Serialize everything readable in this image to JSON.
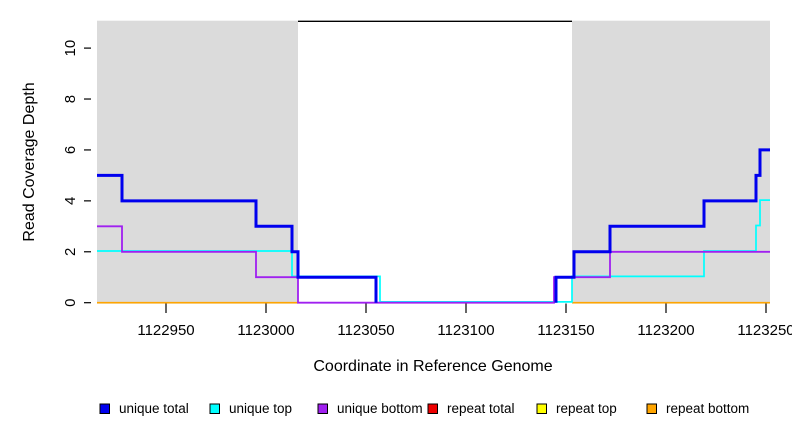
{
  "chart_data": {
    "type": "line",
    "subtype": "step-coverage",
    "title": "",
    "xlabel": "Coordinate in Reference Genome",
    "ylabel": "Read Coverage Depth",
    "x_ticks": [
      1122950,
      1123000,
      1123050,
      1123100,
      1123150,
      1123200,
      1123250
    ],
    "y_ticks": [
      0,
      2,
      4,
      6,
      8,
      10
    ],
    "xlim": [
      1122915.5,
      1123252
    ],
    "ylim": [
      0,
      11.1
    ],
    "grid": false,
    "legend_position": "bottom",
    "background_color": "#ffffff",
    "shaded_region_color": "#DBDBDB",
    "shaded_regions": [
      {
        "x1": 1122915.5,
        "x2": 1123016,
        "name": "shaded-region-left"
      },
      {
        "x1": 1123153,
        "x2": 1123252,
        "name": "shaded-region-right"
      }
    ],
    "gap_marker": {
      "x1": 1123016,
      "x2": 1123153,
      "y": 11.1,
      "color": "#000000"
    },
    "series": [
      {
        "name": "unique total",
        "color": "#0000EE",
        "width": 3,
        "z": 6,
        "dy": 0,
        "segments": [
          {
            "points": [
              [
                1122915.5,
                5
              ],
              [
                1122928,
                4
              ],
              [
                1122995,
                3
              ],
              [
                1123013,
                2
              ],
              [
                1123016,
                1
              ],
              [
                1123055,
                0
              ]
            ],
            "end": 1123055
          },
          {
            "points": [
              [
                1123145,
                0
              ],
              [
                1123145,
                1
              ],
              [
                1123154,
                2
              ],
              [
                1123172,
                3
              ],
              [
                1123219,
                4
              ],
              [
                1123245,
                5
              ],
              [
                1123247,
                6
              ]
            ],
            "end": 1123252
          }
        ]
      },
      {
        "name": "unique top",
        "color": "#00FFFF",
        "width": 1.7,
        "z": 4,
        "dy": -0.8,
        "segments": [
          {
            "points": [
              [
                1122915.5,
                2
              ],
              [
                1123013,
                1
              ],
              [
                1123057,
                0
              ],
              [
                1123153,
                1
              ],
              [
                1123219,
                2
              ],
              [
                1123245,
                3
              ],
              [
                1123247,
                4
              ]
            ],
            "end": 1123252
          }
        ]
      },
      {
        "name": "unique bottom",
        "color": "#A020F0",
        "width": 1.8,
        "z": 5,
        "dy": 0,
        "segments": [
          {
            "points": [
              [
                1122915.5,
                3
              ],
              [
                1122928,
                2
              ],
              [
                1122995,
                1
              ],
              [
                1123016,
                0
              ],
              [
                1123144,
                1
              ],
              [
                1123172,
                2
              ]
            ],
            "end": 1123252
          }
        ]
      },
      {
        "name": "repeat total",
        "color": "#EE0000",
        "width": 1.7,
        "z": 1,
        "dy": 0,
        "segments": []
      },
      {
        "name": "repeat top",
        "color": "#FFFF00",
        "width": 1.7,
        "z": 2,
        "dy": 0,
        "segments": []
      },
      {
        "name": "repeat bottom",
        "color": "#FFA500",
        "width": 1.7,
        "z": 3,
        "dy": 0,
        "segments": [
          {
            "points": [
              [
                1122915.5,
                0
              ]
            ],
            "end": 1123016
          },
          {
            "points": [
              [
                1123153,
                0
              ]
            ],
            "end": 1123252
          }
        ]
      }
    ]
  }
}
